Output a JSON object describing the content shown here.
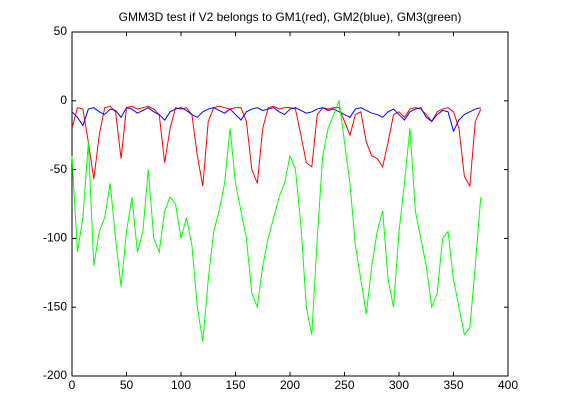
{
  "chart_data": {
    "type": "line",
    "title": "GMM3D test if V2 belongs to GM1(red), GM2(blue), GM3(green)",
    "x": [
      0,
      5,
      10,
      15,
      20,
      25,
      30,
      35,
      40,
      45,
      50,
      55,
      60,
      65,
      70,
      75,
      80,
      85,
      90,
      95,
      100,
      105,
      110,
      115,
      120,
      125,
      130,
      135,
      140,
      145,
      150,
      155,
      160,
      165,
      170,
      175,
      180,
      185,
      190,
      195,
      200,
      205,
      210,
      215,
      220,
      225,
      230,
      235,
      240,
      245,
      250,
      255,
      260,
      265,
      270,
      275,
      280,
      285,
      290,
      295,
      300,
      305,
      310,
      315,
      320,
      325,
      330,
      335,
      340,
      345,
      350,
      355,
      360,
      365,
      370,
      375
    ],
    "series": [
      {
        "name": "GM1",
        "color": "#ff0000",
        "values": [
          -20,
          -5,
          -6,
          -30,
          -57,
          -25,
          -5,
          -4,
          -8,
          -42,
          -5,
          -4,
          -6,
          -5,
          -4,
          -6,
          -10,
          -45,
          -20,
          -5,
          -6,
          -5,
          -10,
          -40,
          -62,
          -15,
          -5,
          -4,
          -5,
          -6,
          -5,
          -5,
          -15,
          -50,
          -60,
          -20,
          -5,
          -4,
          -6,
          -5,
          -5,
          -6,
          -25,
          -45,
          -48,
          -10,
          -5,
          -6,
          -5,
          -5,
          -15,
          -25,
          -10,
          -8,
          -30,
          -40,
          -42,
          -48,
          -30,
          -10,
          -8,
          -12,
          -6,
          -5,
          -6,
          -10,
          -15,
          -8,
          -6,
          -5,
          -8,
          -20,
          -55,
          -62,
          -15,
          -6
        ]
      },
      {
        "name": "GM2",
        "color": "#0000ff",
        "values": [
          -8,
          -12,
          -18,
          -6,
          -5,
          -8,
          -10,
          -6,
          -7,
          -12,
          -5,
          -6,
          -9,
          -7,
          -5,
          -8,
          -10,
          -14,
          -8,
          -6,
          -5,
          -7,
          -10,
          -12,
          -8,
          -6,
          -5,
          -7,
          -9,
          -6,
          -10,
          -14,
          -8,
          -6,
          -5,
          -7,
          -6,
          -5,
          -8,
          -10,
          -6,
          -5,
          -7,
          -9,
          -8,
          -6,
          -5,
          -7,
          -6,
          -8,
          -10,
          -12,
          -6,
          -5,
          -7,
          -9,
          -10,
          -12,
          -8,
          -6,
          -10,
          -14,
          -8,
          -6,
          -5,
          -12,
          -15,
          -10,
          -7,
          -8,
          -22,
          -14,
          -10,
          -8,
          -6,
          -5
        ]
      },
      {
        "name": "GM3",
        "color": "#00ff00",
        "values": [
          -40,
          -110,
          -85,
          -30,
          -120,
          -95,
          -85,
          -60,
          -100,
          -135,
          -95,
          -70,
          -110,
          -95,
          -50,
          -100,
          -110,
          -80,
          -70,
          -75,
          -100,
          -85,
          -105,
          -150,
          -175,
          -130,
          -95,
          -80,
          -60,
          -20,
          -60,
          -80,
          -100,
          -140,
          -150,
          -120,
          -100,
          -85,
          -70,
          -60,
          -40,
          -50,
          -90,
          -150,
          -170,
          -100,
          -40,
          -20,
          -10,
          0,
          -30,
          -60,
          -105,
          -130,
          -155,
          -120,
          -95,
          -80,
          -130,
          -150,
          -95,
          -60,
          -20,
          -80,
          -100,
          -120,
          -150,
          -140,
          -100,
          -95,
          -130,
          -150,
          -170,
          -165,
          -120,
          -70
        ]
      }
    ],
    "xlim": [
      0,
      400
    ],
    "xticks": [
      0,
      50,
      100,
      150,
      200,
      250,
      300,
      350,
      400
    ],
    "ylim": [
      -200,
      50
    ],
    "yticks": [
      -200,
      -150,
      -100,
      -50,
      0,
      50
    ],
    "grid": false
  }
}
